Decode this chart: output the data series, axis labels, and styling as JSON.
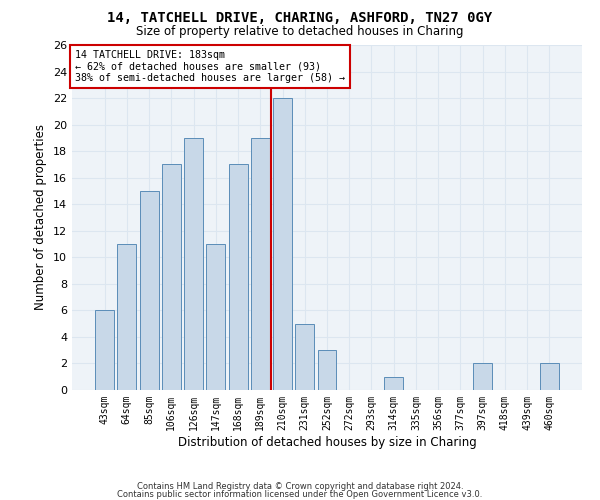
{
  "title1": "14, TATCHELL DRIVE, CHARING, ASHFORD, TN27 0GY",
  "title2": "Size of property relative to detached houses in Charing",
  "xlabel": "Distribution of detached houses by size in Charing",
  "ylabel": "Number of detached properties",
  "bar_labels": [
    "43sqm",
    "64sqm",
    "85sqm",
    "106sqm",
    "126sqm",
    "147sqm",
    "168sqm",
    "189sqm",
    "210sqm",
    "231sqm",
    "252sqm",
    "272sqm",
    "293sqm",
    "314sqm",
    "335sqm",
    "356sqm",
    "377sqm",
    "397sqm",
    "418sqm",
    "439sqm",
    "460sqm"
  ],
  "bar_values": [
    6,
    11,
    15,
    17,
    19,
    11,
    17,
    19,
    22,
    5,
    3,
    0,
    0,
    1,
    0,
    0,
    0,
    2,
    0,
    0,
    2
  ],
  "bar_color": "#c8d8e8",
  "bar_edgecolor": "#5b8db8",
  "vline_x": 7.5,
  "vline_color": "#cc0000",
  "annotation_text": "14 TATCHELL DRIVE: 183sqm\n← 62% of detached houses are smaller (93)\n38% of semi-detached houses are larger (58) →",
  "annotation_box_color": "#ffffff",
  "annotation_box_edgecolor": "#cc0000",
  "ylim": [
    0,
    26
  ],
  "yticks": [
    0,
    2,
    4,
    6,
    8,
    10,
    12,
    14,
    16,
    18,
    20,
    22,
    24,
    26
  ],
  "grid_color": "#dce6f0",
  "background_color": "#eef3f8",
  "footer1": "Contains HM Land Registry data © Crown copyright and database right 2024.",
  "footer2": "Contains public sector information licensed under the Open Government Licence v3.0."
}
